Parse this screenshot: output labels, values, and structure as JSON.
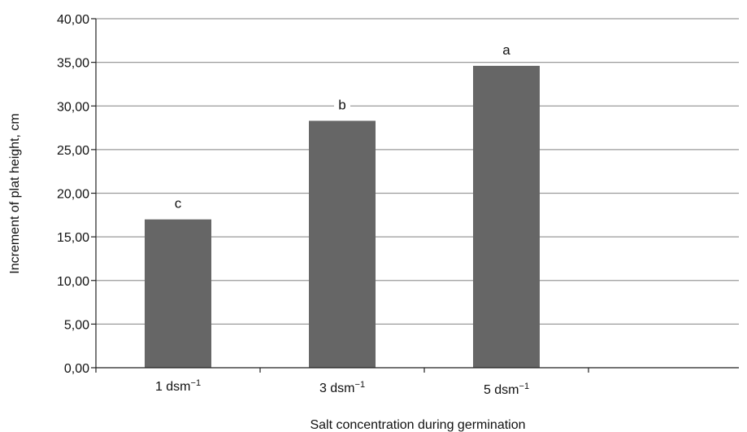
{
  "chart_data": {
    "type": "bar",
    "categories": [
      {
        "base": "1 dsm",
        "sup": "−1"
      },
      {
        "base": "3 dsm",
        "sup": "−1"
      },
      {
        "base": "5 dsm",
        "sup": "−1"
      }
    ],
    "values": [
      17.0,
      28.3,
      34.6
    ],
    "bar_labels": [
      "c",
      "b",
      "a"
    ],
    "bar_color": "#666666",
    "gridline_color": "#9a9a9a",
    "title": "",
    "xlabel": "Salt concentration during germination",
    "ylabel": "Increment of plat height, cm",
    "ylim": [
      0,
      40
    ],
    "yticks": [
      "0,00",
      "5,00",
      "10,00",
      "15,00",
      "20,00",
      "25,00",
      "30,00",
      "35,00",
      "40,00"
    ],
    "ytick_values": [
      0,
      5,
      10,
      15,
      20,
      25,
      30,
      35,
      40
    ],
    "grid": true,
    "legend": "none"
  }
}
